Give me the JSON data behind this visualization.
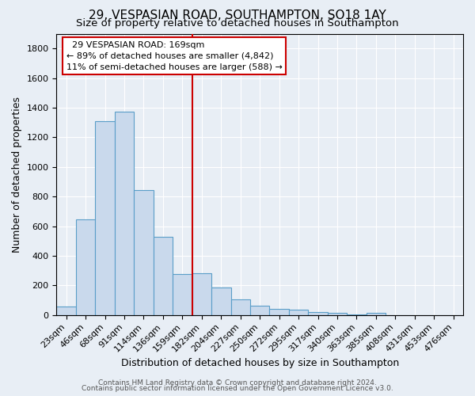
{
  "title": "29, VESPASIAN ROAD, SOUTHAMPTON, SO18 1AY",
  "subtitle": "Size of property relative to detached houses in Southampton",
  "xlabel": "Distribution of detached houses by size in Southampton",
  "ylabel": "Number of detached properties",
  "footnote1": "Contains HM Land Registry data © Crown copyright and database right 2024.",
  "footnote2": "Contains public sector information licensed under the Open Government Licence v3.0.",
  "categories": [
    "23sqm",
    "46sqm",
    "68sqm",
    "91sqm",
    "114sqm",
    "136sqm",
    "159sqm",
    "182sqm",
    "204sqm",
    "227sqm",
    "250sqm",
    "272sqm",
    "295sqm",
    "317sqm",
    "340sqm",
    "363sqm",
    "385sqm",
    "408sqm",
    "431sqm",
    "453sqm",
    "476sqm"
  ],
  "values": [
    55,
    645,
    1310,
    1375,
    845,
    530,
    275,
    280,
    185,
    105,
    65,
    40,
    35,
    22,
    12,
    5,
    13,
    0,
    0,
    0,
    0
  ],
  "bar_color_face": "#c9d9ec",
  "bar_color_edge": "#5a9ec8",
  "vline_x": 6.5,
  "vline_color": "#cc0000",
  "annotation_line1": "  29 VESPASIAN ROAD: 169sqm  ",
  "annotation_line2": "← 89% of detached houses are smaller (4,842)",
  "annotation_line3": "11% of semi-detached houses are larger (588) →",
  "ylim": [
    0,
    1900
  ],
  "yticks": [
    0,
    200,
    400,
    600,
    800,
    1000,
    1200,
    1400,
    1600,
    1800
  ],
  "background_color": "#e8eef5",
  "grid_color": "#ffffff",
  "title_fontsize": 11,
  "subtitle_fontsize": 9.5,
  "axis_label_fontsize": 9,
  "tick_fontsize": 8,
  "annotation_fontsize": 8,
  "footnote_fontsize": 6.5
}
